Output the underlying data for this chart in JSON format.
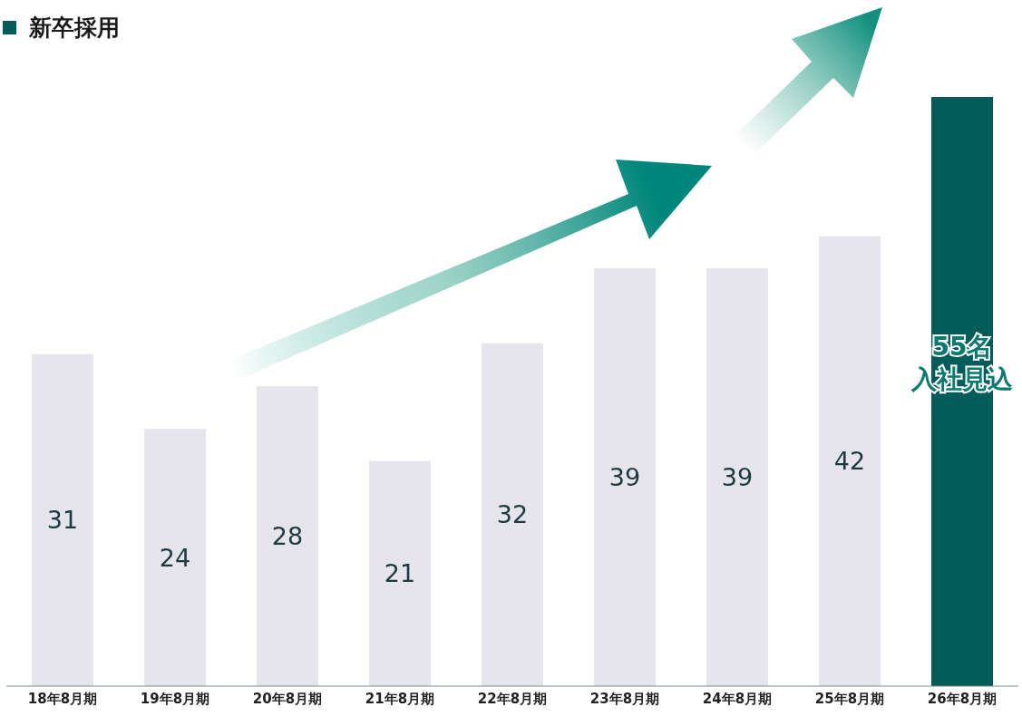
{
  "chart_data": {
    "type": "bar",
    "title": "新卒採用",
    "categories": [
      "18年8月期",
      "19年8月期",
      "20年8月期",
      "21年8月期",
      "22年8月期",
      "23年8月期",
      "24年8月期",
      "25年8月期",
      "26年8月期"
    ],
    "values": [
      31,
      24,
      28,
      21,
      32,
      39,
      39,
      42,
      55
    ],
    "colors": [
      "#e6e5ec",
      "#e6e5ec",
      "#e6e5ec",
      "#e6e5ec",
      "#e6e5ec",
      "#e6e5ec",
      "#e6e5ec",
      "#e6e5ec",
      "#005c58"
    ],
    "value_labels": [
      "31",
      "24",
      "28",
      "21",
      "32",
      "39",
      "39",
      "42",
      "55名入社見込"
    ]
  }
}
